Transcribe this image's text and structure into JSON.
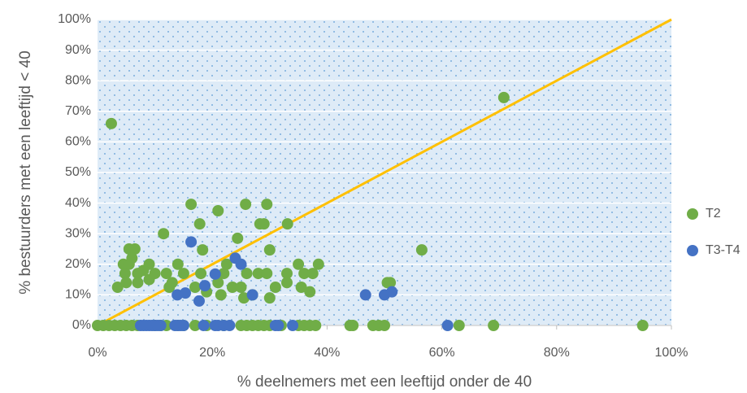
{
  "chart_data": {
    "type": "scatter",
    "xlabel": "% deelnemers met een leeftijd onder de 40",
    "ylabel": "% bestuurders met een leeftijd < 40",
    "xlim": [
      0,
      100
    ],
    "ylim": [
      0,
      100
    ],
    "xticks": [
      {
        "value": 0,
        "label": "0%"
      },
      {
        "value": 20,
        "label": "20%"
      },
      {
        "value": 40,
        "label": "40%"
      },
      {
        "value": 60,
        "label": "60%"
      },
      {
        "value": 80,
        "label": "80%"
      },
      {
        "value": 100,
        "label": "100%"
      }
    ],
    "yticks": [
      {
        "value": 0,
        "label": "0%"
      },
      {
        "value": 10,
        "label": "10%"
      },
      {
        "value": 20,
        "label": "20%"
      },
      {
        "value": 30,
        "label": "30%"
      },
      {
        "value": 40,
        "label": "40%"
      },
      {
        "value": 50,
        "label": "50%"
      },
      {
        "value": 60,
        "label": "60%"
      },
      {
        "value": 70,
        "label": "70%"
      },
      {
        "value": 80,
        "label": "80%"
      },
      {
        "value": 90,
        "label": "90%"
      },
      {
        "value": 100,
        "label": "100%"
      }
    ],
    "grid": true,
    "legend": "right",
    "diagonal": {
      "color": "#ffc000",
      "x": [
        0,
        100
      ],
      "values": [
        0,
        100
      ]
    },
    "series": [
      {
        "name": "T2",
        "color": "#70ad47",
        "x": [
          2.4,
          70.8,
          56.5,
          51,
          16.3,
          21,
          25.8,
          29.5,
          17.8,
          24.4,
          28.3,
          29,
          33.1,
          11.5,
          18.3,
          30,
          5.5,
          6.5,
          6,
          4.5,
          5.5,
          9,
          14,
          22.5,
          35,
          38.5,
          4.8,
          7,
          10,
          12,
          15,
          18,
          22,
          26,
          28,
          29.5,
          33,
          36,
          37.5,
          5,
          7,
          9,
          13,
          21,
          33,
          50.5,
          3.5,
          12.5,
          17,
          23.5,
          25,
          31,
          35.5,
          19,
          21.5,
          25.5,
          27,
          30,
          37,
          8,
          0,
          1,
          2,
          3,
          4,
          5,
          6,
          7,
          10,
          11,
          12,
          14,
          15,
          17,
          19,
          22,
          25,
          26,
          27,
          28,
          29,
          30,
          32,
          35,
          36,
          37,
          38,
          44,
          44.5,
          48,
          49,
          50,
          63,
          69,
          95
        ],
        "values": [
          66,
          74.5,
          24.7,
          14,
          39.6,
          37.5,
          39.6,
          39.6,
          33.2,
          28.5,
          33.2,
          33.2,
          33.2,
          30,
          24.7,
          24.7,
          25,
          25,
          22,
          20,
          20,
          20,
          20,
          20,
          20,
          20,
          17,
          17,
          17,
          17,
          17,
          17,
          17,
          17,
          17,
          17,
          17,
          17,
          17,
          14,
          14,
          15,
          14,
          14,
          14,
          14,
          12.5,
          12.5,
          12.5,
          12.5,
          12.5,
          12.5,
          12.5,
          11,
          10,
          9,
          10,
          9,
          11,
          18,
          0,
          0,
          0,
          0,
          0,
          0,
          0,
          0,
          0,
          0,
          0,
          0,
          0,
          0,
          0,
          0,
          0,
          0,
          0,
          0,
          0,
          0,
          0,
          0,
          0,
          0,
          0,
          0,
          0,
          0,
          0,
          0,
          0,
          0,
          0
        ]
      },
      {
        "name": "T3-T4",
        "color": "#4472c4",
        "x": [
          16.3,
          24,
          25,
          20.5,
          18.7,
          17.7,
          15.3,
          13.9,
          27,
          46.7,
          50,
          51.3,
          7.5,
          8,
          8.5,
          9,
          9.5,
          10,
          10.5,
          11,
          13.5,
          14,
          14.5,
          15,
          18.5,
          20.5,
          21,
          22,
          23,
          31,
          31.5,
          34,
          61
        ],
        "values": [
          27.3,
          22,
          20,
          16.8,
          13,
          8,
          10.6,
          10,
          10,
          10,
          10,
          11,
          0,
          0,
          0,
          0,
          0,
          0,
          0,
          0,
          0,
          0,
          0,
          0,
          0,
          0,
          0,
          0,
          0,
          0,
          0,
          0,
          0
        ]
      }
    ]
  }
}
